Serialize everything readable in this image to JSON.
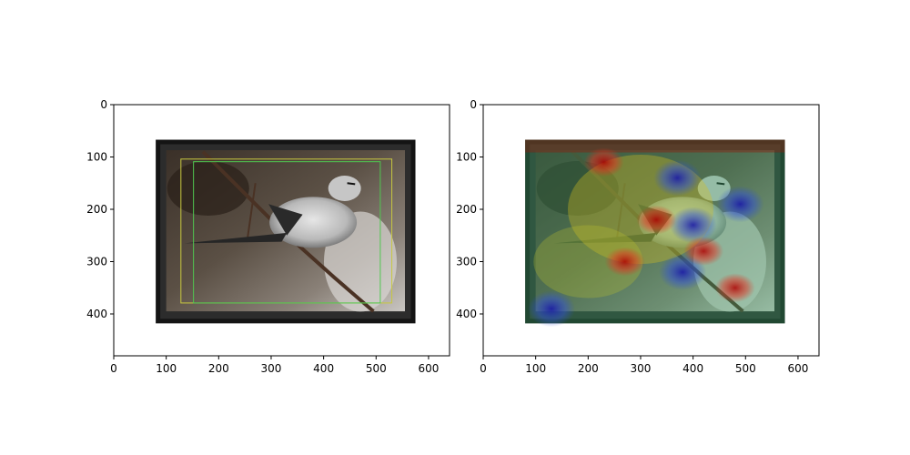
{
  "chart_data": [
    {
      "type": "image",
      "panel": "left",
      "title": "",
      "xlabel": "",
      "ylabel": "",
      "xlim": [
        0,
        640
      ],
      "ylim": [
        480,
        0
      ],
      "xticks": [
        0,
        100,
        200,
        300,
        400,
        500,
        600
      ],
      "yticks": [
        0,
        100,
        200,
        300,
        400
      ],
      "image_extent": {
        "x0": 80,
        "y0": 67,
        "x1": 575,
        "y1": 418
      },
      "boxes": [
        {
          "color": "#c8c840",
          "x0": 128,
          "y0": 104,
          "x1": 530,
          "y1": 379
        },
        {
          "color": "#50c850",
          "x0": 152,
          "y0": 109,
          "x1": 508,
          "y1": 379
        }
      ]
    },
    {
      "type": "heatmap",
      "panel": "right",
      "title": "",
      "xlabel": "",
      "ylabel": "",
      "xlim": [
        0,
        640
      ],
      "ylim": [
        480,
        0
      ],
      "xticks": [
        0,
        100,
        200,
        300,
        400,
        500,
        600
      ],
      "yticks": [
        0,
        100,
        200,
        300,
        400
      ],
      "image_extent": {
        "x0": 80,
        "y0": 67,
        "x1": 575,
        "y1": 418
      },
      "colormap": "jet",
      "hot_spots": [
        {
          "x": 230,
          "y": 110,
          "level": 0.95
        },
        {
          "x": 330,
          "y": 220,
          "level": 1.0
        },
        {
          "x": 270,
          "y": 300,
          "level": 0.9
        },
        {
          "x": 480,
          "y": 350,
          "level": 0.95
        },
        {
          "x": 420,
          "y": 280,
          "level": 0.85
        }
      ],
      "cold_spots": [
        {
          "x": 370,
          "y": 140,
          "level": 0.05
        },
        {
          "x": 400,
          "y": 230,
          "level": 0.0
        },
        {
          "x": 490,
          "y": 190,
          "level": 0.1
        },
        {
          "x": 380,
          "y": 320,
          "level": 0.05
        },
        {
          "x": 130,
          "y": 390,
          "level": 0.1
        }
      ]
    }
  ]
}
